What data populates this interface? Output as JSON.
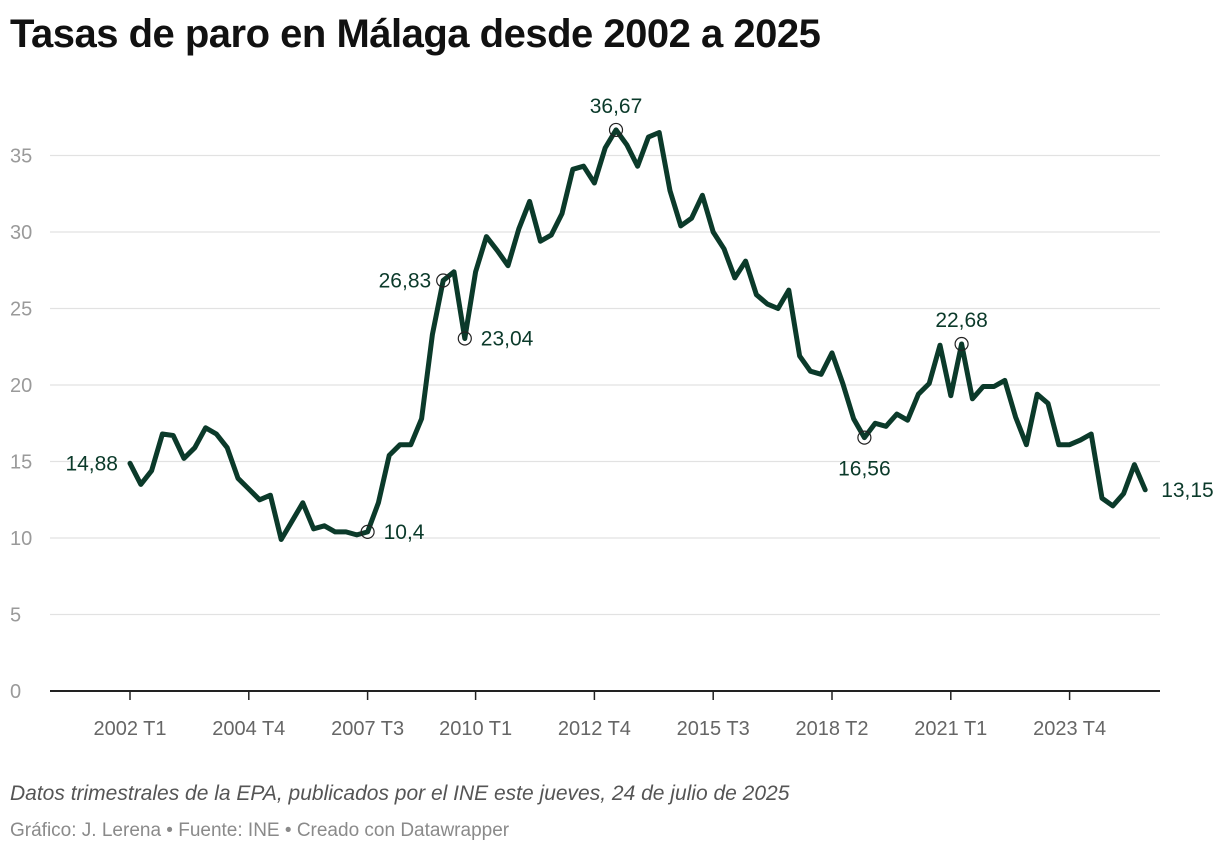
{
  "chart_data": {
    "type": "line",
    "title": "Tasas de paro en Málaga desde 2002 a 2025",
    "xlabel": "",
    "ylabel": "",
    "ylim": [
      0,
      37
    ],
    "y_ticks": [
      "0",
      "5",
      "10",
      "15",
      "20",
      "25",
      "30",
      "35"
    ],
    "x_tick_labels": [
      "2002 T1",
      "2004 T4",
      "2007 T3",
      "2010 T1",
      "2012 T4",
      "2015 T3",
      "2018 T2",
      "2021 T1",
      "2023 T4"
    ],
    "x_tick_quarters": [
      0,
      11,
      22,
      32,
      43,
      54,
      65,
      76,
      87
    ],
    "grid": "horizontal",
    "line_color": "#0b3a2a",
    "series": [
      {
        "values": [
          14.88,
          13.5,
          14.4,
          16.8,
          16.7,
          15.2,
          15.9,
          17.2,
          16.8,
          15.9,
          13.9,
          13.2,
          12.5,
          12.8,
          9.9,
          11.1,
          12.3,
          10.6,
          10.8,
          10.4,
          10.4,
          10.2,
          10.4,
          12.3,
          15.4,
          16.1,
          16.1,
          17.8,
          23.3,
          26.83,
          27.4,
          23.04,
          27.4,
          29.7,
          28.8,
          27.8,
          30.2,
          32.0,
          29.4,
          29.8,
          31.2,
          34.1,
          34.3,
          33.2,
          35.5,
          36.67,
          35.7,
          34.3,
          36.2,
          36.5,
          32.7,
          30.4,
          30.9,
          32.4,
          30.0,
          28.9,
          27.0,
          28.1,
          25.9,
          25.3,
          25.0,
          26.2,
          21.9,
          20.9,
          20.7,
          22.1,
          20.1,
          17.8,
          16.56,
          17.5,
          17.3,
          18.1,
          17.7,
          19.4,
          20.1,
          22.6,
          19.3,
          22.68,
          19.1,
          19.9,
          19.9,
          20.3,
          17.9,
          16.1,
          19.4,
          18.8,
          16.1,
          16.1,
          16.4,
          16.8,
          12.6,
          12.1,
          12.9,
          14.8,
          13.15
        ]
      }
    ],
    "annotations": [
      {
        "quarter": 0,
        "value": 14.88,
        "label": "14,88",
        "side": "left",
        "marker": false
      },
      {
        "quarter": 22,
        "value": 10.4,
        "label": "10,4",
        "side": "right",
        "marker": true
      },
      {
        "quarter": 29,
        "value": 26.83,
        "label": "26,83",
        "side": "left",
        "marker": true
      },
      {
        "quarter": 31,
        "value": 23.04,
        "label": "23,04",
        "side": "right",
        "marker": true
      },
      {
        "quarter": 45,
        "value": 36.67,
        "label": "36,67",
        "side": "above",
        "marker": true
      },
      {
        "quarter": 68,
        "value": 16.56,
        "label": "16,56",
        "side": "below",
        "marker": true
      },
      {
        "quarter": 77,
        "value": 22.68,
        "label": "22,68",
        "side": "above",
        "marker": true
      },
      {
        "quarter": 94,
        "value": 13.15,
        "label": "13,15",
        "side": "right",
        "marker": false
      }
    ]
  },
  "notes": "Datos trimestrales de la EPA, publicados por el INE este jueves, 24 de julio de 2025",
  "byline": "Gráfico: J. Lerena • Fuente: INE • Creado con Datawrapper"
}
